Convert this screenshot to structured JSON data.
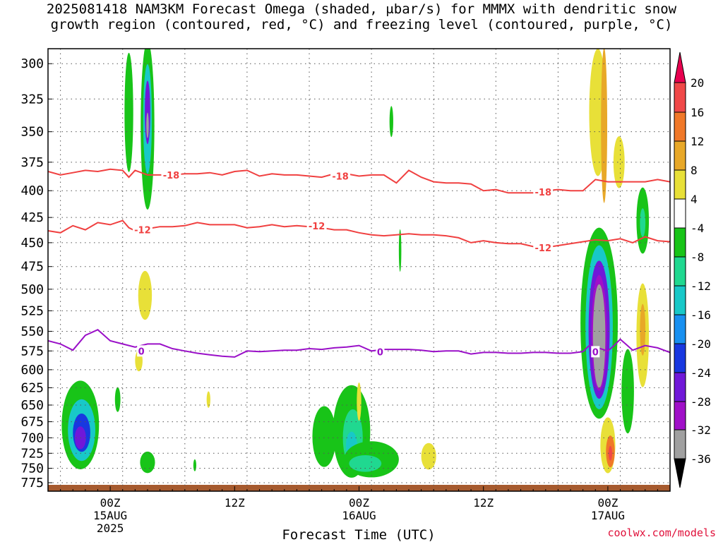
{
  "title": {
    "line1": "2025081418 NAM3KM Forecast Omega (shaded, μbar/s) for MMMX with dendritic snow",
    "line2": "growth region (contoured, red, °C) and freezing level (contoured, purple, °C)"
  },
  "credit": "coolwx.com/models",
  "chart_data": {
    "type": "heatmap",
    "title": "2025081418 NAM3KM Forecast Omega (shaded, μbar/s) for MMMX with dendritic snow growth region (contoured, red, °C) and freezing level (contoured, purple, °C)",
    "xlabel": "Forecast Time (UTC)",
    "ylabel": "",
    "x_range_hours_from_15AUG_00Z": [
      -5,
      45
    ],
    "y_range_hPa": [
      790,
      290
    ],
    "y_scale": "log-pressure",
    "grid": true,
    "y_ticks": [
      300,
      325,
      350,
      375,
      400,
      425,
      450,
      475,
      500,
      525,
      550,
      575,
      600,
      625,
      650,
      675,
      700,
      725,
      750,
      775
    ],
    "x_ticks": [
      {
        "hour": 0,
        "label": "00Z",
        "sub1": "15AUG",
        "sub2": "2025"
      },
      {
        "hour": 10,
        "label": "12Z",
        "sub1": "",
        "sub2": ""
      },
      {
        "hour": 20,
        "label": "00Z",
        "sub1": "16AUG",
        "sub2": ""
      },
      {
        "hour": 30,
        "label": "12Z",
        "sub1": "",
        "sub2": ""
      },
      {
        "hour": 40,
        "label": "00Z",
        "sub1": "17AUG",
        "sub2": ""
      }
    ],
    "colorbar": {
      "levels": [
        20,
        16,
        12,
        8,
        4,
        -4,
        -8,
        -12,
        -16,
        -20,
        -24,
        -28,
        -32,
        -36
      ],
      "colors": [
        "#e8004f",
        "#f04848",
        "#f07828",
        "#e8a828",
        "#e8e038",
        "#ffffff",
        "#18c418",
        "#20d890",
        "#18c8c8",
        "#1890f0",
        "#1838e0",
        "#7018d8",
        "#a010c8",
        "#a0a0a0",
        "#000000"
      ]
    },
    "series": [
      {
        "name": "-18",
        "color": "#f04040",
        "x": [
          -5,
          -4,
          -3,
          -2,
          -1,
          0,
          1,
          1.5,
          2,
          3,
          4,
          5,
          6,
          7,
          8,
          9,
          10,
          11,
          12,
          13,
          14,
          15,
          16,
          17,
          18,
          19,
          20,
          21,
          22,
          23,
          24,
          25,
          26,
          27,
          28,
          29,
          30,
          31,
          32,
          33,
          34,
          35,
          36,
          37,
          38,
          39,
          40,
          41,
          42,
          43,
          44,
          45
        ],
        "y": [
          383,
          386,
          384,
          382,
          383,
          381,
          382,
          388,
          382,
          386,
          386,
          386,
          385,
          385,
          384,
          386,
          383,
          382,
          387,
          385,
          386,
          386,
          387,
          388,
          385,
          385,
          387,
          386,
          386,
          393,
          382,
          388,
          392,
          393,
          393,
          394,
          400,
          399,
          402,
          402,
          402,
          400,
          399,
          400,
          400,
          390,
          392,
          392,
          392,
          392,
          390,
          392
        ]
      },
      {
        "name": "-12",
        "color": "#f04040",
        "x": [
          -5,
          -4,
          -3,
          -2,
          -1,
          0,
          1,
          1.5,
          2,
          3,
          4,
          5,
          6,
          7,
          8,
          9,
          10,
          11,
          12,
          13,
          14,
          15,
          16,
          17,
          18,
          19,
          20,
          21,
          22,
          23,
          24,
          25,
          26,
          27,
          28,
          29,
          30,
          31,
          32,
          33,
          34,
          35,
          36,
          37,
          38,
          39,
          40,
          41,
          42,
          43,
          44,
          45
        ],
        "y": [
          438,
          440,
          433,
          437,
          430,
          432,
          428,
          435,
          438,
          436,
          434,
          434,
          433,
          430,
          432,
          432,
          432,
          435,
          434,
          432,
          434,
          433,
          434,
          435,
          437,
          437,
          440,
          442,
          443,
          442,
          441,
          442,
          442,
          443,
          445,
          450,
          448,
          450,
          451,
          451,
          454,
          455,
          453,
          451,
          449,
          447,
          448,
          446,
          450,
          444,
          448,
          449
        ]
      },
      {
        "name": "0",
        "color": "#9a10c8",
        "x": [
          -5,
          -4,
          -3,
          -2,
          -1,
          0,
          1,
          2,
          3,
          4,
          5,
          6,
          7,
          8,
          9,
          10,
          11,
          12,
          13,
          14,
          15,
          16,
          17,
          18,
          19,
          20,
          21,
          22,
          23,
          24,
          25,
          26,
          27,
          28,
          29,
          30,
          31,
          32,
          33,
          34,
          35,
          36,
          37,
          38,
          38.5,
          39,
          40,
          40.5,
          41,
          42,
          43,
          44,
          45
        ],
        "y": [
          562,
          566,
          574,
          555,
          548,
          562,
          566,
          570,
          566,
          566,
          572,
          575,
          578,
          580,
          582,
          583,
          575,
          576,
          575,
          574,
          574,
          572,
          573,
          571,
          570,
          568,
          575,
          573,
          573,
          573,
          574,
          576,
          575,
          575,
          579,
          577,
          577,
          578,
          578,
          577,
          577,
          578,
          578,
          576,
          568,
          570,
          575,
          568,
          560,
          574,
          568,
          571,
          577
        ]
      }
    ],
    "annotations": [
      {
        "text": "-18",
        "x": 4.9,
        "y": 386
      },
      {
        "text": "-18",
        "x": 18.5,
        "y": 387
      },
      {
        "text": "-18",
        "x": 34.8,
        "y": 401
      },
      {
        "text": "-12",
        "x": 2.6,
        "y": 437
      },
      {
        "text": "-12",
        "x": 16.6,
        "y": 433
      },
      {
        "text": "-12",
        "x": 34.8,
        "y": 455
      },
      {
        "text": "0",
        "x": 2.5,
        "y": 575
      },
      {
        "text": "0",
        "x": 21.7,
        "y": 576
      },
      {
        "text": "0",
        "x": 39,
        "y": 576
      }
    ],
    "shaded_regions": [
      {
        "x": 1.5,
        "y": 335,
        "rx": 0.35,
        "ry": 45,
        "value": -8
      },
      {
        "x": 3.0,
        "y": 345,
        "rx": 0.55,
        "ry": 65,
        "value": -8
      },
      {
        "x": 3.0,
        "y": 340,
        "rx": 0.35,
        "ry": 42,
        "value": -16
      },
      {
        "x": 3.0,
        "y": 335,
        "rx": 0.22,
        "ry": 24,
        "value": -28
      },
      {
        "x": 3.0,
        "y": 345,
        "rx": 0.1,
        "ry": 10,
        "value": -36
      },
      {
        "x": 2.8,
        "y": 507,
        "rx": 0.55,
        "ry": 28,
        "value": 4
      },
      {
        "x": 2.3,
        "y": 588,
        "rx": 0.3,
        "ry": 14,
        "value": 4
      },
      {
        "x": -2.4,
        "y": 680,
        "rx": 1.5,
        "ry": 68,
        "value": -8
      },
      {
        "x": -2.3,
        "y": 688,
        "rx": 1.1,
        "ry": 48,
        "value": -16
      },
      {
        "x": -2.3,
        "y": 692,
        "rx": 0.7,
        "ry": 30,
        "value": -24
      },
      {
        "x": -2.4,
        "y": 700,
        "rx": 0.45,
        "ry": 18,
        "value": -28
      },
      {
        "x": 0.6,
        "y": 642,
        "rx": 0.22,
        "ry": 18,
        "value": -8
      },
      {
        "x": 3.0,
        "y": 740,
        "rx": 0.6,
        "ry": 18,
        "value": -8
      },
      {
        "x": 7.9,
        "y": 642,
        "rx": 0.15,
        "ry": 12,
        "value": 4
      },
      {
        "x": 6.8,
        "y": 745,
        "rx": 0.12,
        "ry": 10,
        "value": -8
      },
      {
        "x": 17.2,
        "y": 698,
        "rx": 0.95,
        "ry": 48,
        "value": -8
      },
      {
        "x": 19.4,
        "y": 690,
        "rx": 1.5,
        "ry": 72,
        "value": -8
      },
      {
        "x": 19.5,
        "y": 700,
        "rx": 0.8,
        "ry": 45,
        "value": -12
      },
      {
        "x": 19.4,
        "y": 712,
        "rx": 0.45,
        "ry": 22,
        "value": -16
      },
      {
        "x": 21.0,
        "y": 735,
        "rx": 2.2,
        "ry": 30,
        "value": -8
      },
      {
        "x": 20.5,
        "y": 742,
        "rx": 1.3,
        "ry": 14,
        "value": -12
      },
      {
        "x": 20.0,
        "y": 645,
        "rx": 0.18,
        "ry": 28,
        "value": 4
      },
      {
        "x": 22.6,
        "y": 342,
        "rx": 0.15,
        "ry": 12,
        "value": -8
      },
      {
        "x": 23.3,
        "y": 458,
        "rx": 0.1,
        "ry": 22,
        "value": -8
      },
      {
        "x": 25.6,
        "y": 730,
        "rx": 0.6,
        "ry": 22,
        "value": 4
      },
      {
        "x": 39.2,
        "y": 335,
        "rx": 0.7,
        "ry": 48,
        "value": 4
      },
      {
        "x": 39.7,
        "y": 345,
        "rx": 0.25,
        "ry": 60,
        "value": 8
      },
      {
        "x": 40.9,
        "y": 375,
        "rx": 0.45,
        "ry": 22,
        "value": 4
      },
      {
        "x": 39.3,
        "y": 540,
        "rx": 1.5,
        "ry": 115,
        "value": -8
      },
      {
        "x": 39.3,
        "y": 545,
        "rx": 1.1,
        "ry": 100,
        "value": -16
      },
      {
        "x": 39.3,
        "y": 548,
        "rx": 0.85,
        "ry": 85,
        "value": -28
      },
      {
        "x": 39.3,
        "y": 552,
        "rx": 0.62,
        "ry": 72,
        "value": -32
      },
      {
        "x": 39.3,
        "y": 556,
        "rx": 0.5,
        "ry": 65,
        "value": -36
      },
      {
        "x": 40.0,
        "y": 712,
        "rx": 0.6,
        "ry": 45,
        "value": 4
      },
      {
        "x": 40.2,
        "y": 722,
        "rx": 0.35,
        "ry": 26,
        "value": 12
      },
      {
        "x": 40.2,
        "y": 725,
        "rx": 0.15,
        "ry": 12,
        "value": 16
      },
      {
        "x": 41.6,
        "y": 630,
        "rx": 0.5,
        "ry": 60,
        "value": -8
      },
      {
        "x": 42.8,
        "y": 428,
        "rx": 0.5,
        "ry": 32,
        "value": -8
      },
      {
        "x": 42.8,
        "y": 430,
        "rx": 0.22,
        "ry": 14,
        "value": -12
      },
      {
        "x": 42.8,
        "y": 555,
        "rx": 0.5,
        "ry": 65,
        "value": 4
      },
      {
        "x": 42.8,
        "y": 548,
        "rx": 0.22,
        "ry": 32,
        "value": 8
      }
    ]
  }
}
